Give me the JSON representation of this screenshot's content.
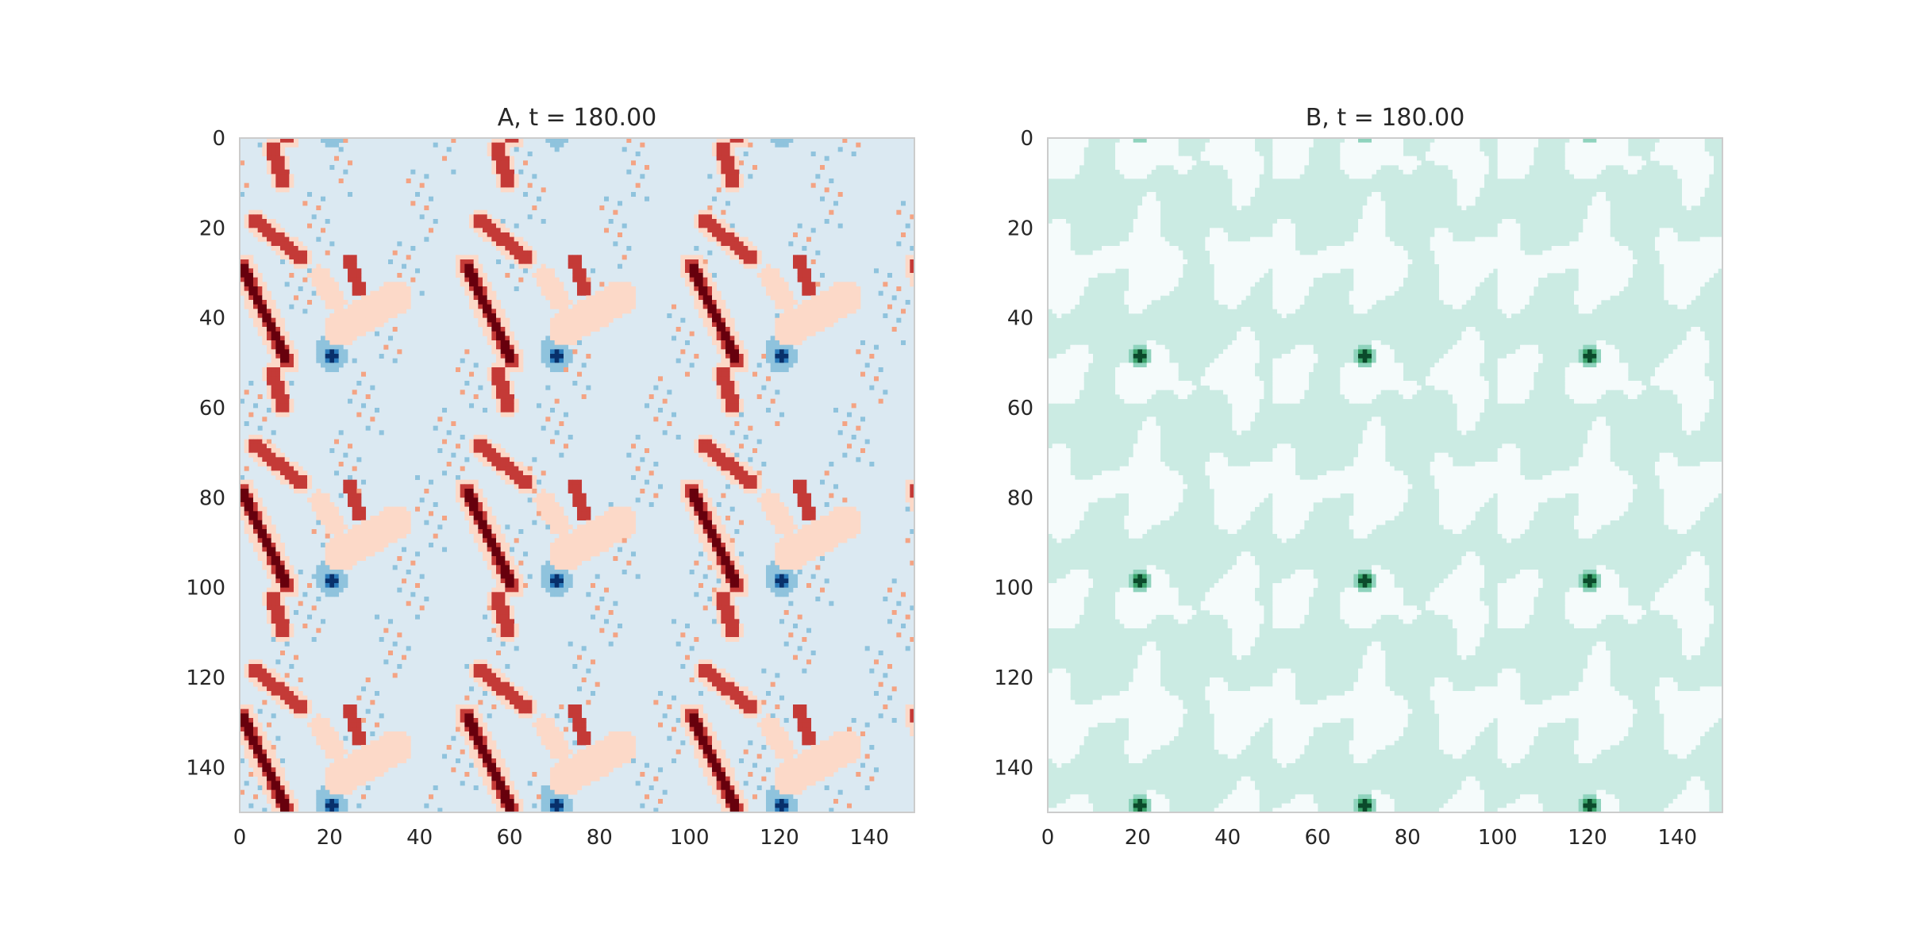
{
  "chart_data": [
    {
      "type": "heatmap",
      "title": "A, t = 180.00",
      "xlabel": "",
      "ylabel": "",
      "grid_size": [
        150,
        150
      ],
      "xlim": [
        0,
        150
      ],
      "ylim": [
        150,
        0
      ],
      "x_ticks": [
        0,
        20,
        40,
        60,
        80,
        100,
        120,
        140
      ],
      "y_ticks": [
        0,
        20,
        40,
        60,
        80,
        100,
        120,
        140
      ],
      "colormap": "RdBu_r",
      "levels": [
        "#08306b",
        "#2b7bba",
        "#8fc3dd",
        "#dbe9f2",
        "#fcd9c8",
        "#f4a383",
        "#c43a37",
        "#67000d"
      ],
      "background_level": 3,
      "periodicity": [
        50,
        50
      ],
      "grid": false
    },
    {
      "type": "heatmap",
      "title": "B, t = 180.00",
      "xlabel": "",
      "ylabel": "",
      "grid_size": [
        150,
        150
      ],
      "xlim": [
        0,
        150
      ],
      "ylim": [
        150,
        0
      ],
      "x_ticks": [
        0,
        20,
        40,
        60,
        80,
        100,
        120,
        140
      ],
      "y_ticks": [
        0,
        20,
        40,
        60,
        80,
        100,
        120,
        140
      ],
      "colormap": "BuGn",
      "levels": [
        "#f5fbfb",
        "#cbebe3",
        "#8fd3bd",
        "#3aa36a",
        "#0b4a2b"
      ],
      "background_level": 1,
      "periodicity": [
        50,
        50
      ],
      "grid": false
    }
  ]
}
